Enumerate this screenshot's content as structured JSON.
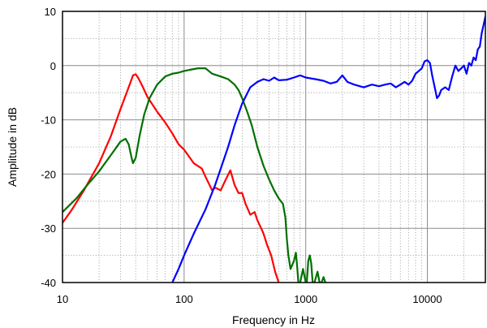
{
  "chart_data": {
    "type": "line",
    "xlabel": "Frequency in Hz",
    "ylabel": "Amplitude in dB",
    "x_scale": "log",
    "xlim": [
      10,
      30000
    ],
    "ylim": [
      -40,
      10
    ],
    "x_ticks": [
      {
        "value": 10,
        "label": "10"
      },
      {
        "value": 100,
        "label": "100"
      },
      {
        "value": 1000,
        "label": "1000"
      },
      {
        "value": 10000,
        "label": "10000"
      }
    ],
    "y_ticks": [
      {
        "value": 10,
        "label": "10"
      },
      {
        "value": 0,
        "label": "0"
      },
      {
        "value": -10,
        "label": "-10"
      },
      {
        "value": -20,
        "label": "-20"
      },
      {
        "value": -30,
        "label": "-30"
      },
      {
        "value": -40,
        "label": "-40"
      }
    ],
    "grid": true,
    "series": [
      {
        "color": "#ff0000",
        "points": [
          [
            10,
            -29
          ],
          [
            12,
            -26.5
          ],
          [
            15,
            -23
          ],
          [
            20,
            -18
          ],
          [
            25,
            -13
          ],
          [
            30,
            -8
          ],
          [
            35,
            -4
          ],
          [
            38,
            -1.8
          ],
          [
            40,
            -1.6
          ],
          [
            42,
            -2.3
          ],
          [
            45,
            -3.6
          ],
          [
            50,
            -5.8
          ],
          [
            60,
            -8.5
          ],
          [
            70,
            -10.5
          ],
          [
            80,
            -12.5
          ],
          [
            90,
            -14.5
          ],
          [
            100,
            -15.5
          ],
          [
            120,
            -18
          ],
          [
            140,
            -19
          ],
          [
            150,
            -20.5
          ],
          [
            170,
            -23
          ],
          [
            180,
            -22.5
          ],
          [
            200,
            -23
          ],
          [
            220,
            -21
          ],
          [
            240,
            -19.3
          ],
          [
            260,
            -22
          ],
          [
            280,
            -23.5
          ],
          [
            300,
            -23.5
          ],
          [
            320,
            -25.5
          ],
          [
            350,
            -27.5
          ],
          [
            380,
            -27
          ],
          [
            400,
            -28.5
          ],
          [
            430,
            -30
          ],
          [
            450,
            -31
          ],
          [
            480,
            -33
          ],
          [
            520,
            -35
          ],
          [
            560,
            -38
          ],
          [
            600,
            -40
          ]
        ]
      },
      {
        "color": "#007000",
        "points": [
          [
            10,
            -27
          ],
          [
            13,
            -24.5
          ],
          [
            16,
            -22
          ],
          [
            20,
            -19.5
          ],
          [
            25,
            -16.5
          ],
          [
            30,
            -14
          ],
          [
            33,
            -13.5
          ],
          [
            35,
            -14.5
          ],
          [
            37,
            -17
          ],
          [
            38,
            -18
          ],
          [
            40,
            -17
          ],
          [
            43,
            -13
          ],
          [
            47,
            -9
          ],
          [
            52,
            -6
          ],
          [
            60,
            -3.5
          ],
          [
            70,
            -2
          ],
          [
            80,
            -1.5
          ],
          [
            90,
            -1.3
          ],
          [
            100,
            -1
          ],
          [
            110,
            -0.8
          ],
          [
            130,
            -0.5
          ],
          [
            150,
            -0.5
          ],
          [
            170,
            -1.5
          ],
          [
            200,
            -2
          ],
          [
            230,
            -2.5
          ],
          [
            260,
            -3.5
          ],
          [
            280,
            -4.5
          ],
          [
            300,
            -6
          ],
          [
            330,
            -8.5
          ],
          [
            360,
            -11
          ],
          [
            400,
            -15
          ],
          [
            450,
            -18.5
          ],
          [
            500,
            -21
          ],
          [
            550,
            -23
          ],
          [
            600,
            -24.5
          ],
          [
            650,
            -25.5
          ],
          [
            680,
            -28
          ],
          [
            700,
            -32
          ],
          [
            720,
            -35
          ],
          [
            750,
            -37.5
          ],
          [
            800,
            -36
          ],
          [
            830,
            -34.5
          ],
          [
            850,
            -37
          ],
          [
            870,
            -40
          ],
          [
            900,
            -40
          ],
          [
            950,
            -37.5
          ],
          [
            1000,
            -40
          ],
          [
            1020,
            -40
          ],
          [
            1050,
            -36
          ],
          [
            1080,
            -35
          ],
          [
            1110,
            -36.5
          ],
          [
            1140,
            -40
          ],
          [
            1180,
            -40
          ],
          [
            1250,
            -38
          ],
          [
            1300,
            -40
          ],
          [
            1350,
            -40
          ],
          [
            1400,
            -39
          ],
          [
            1450,
            -40
          ]
        ]
      },
      {
        "color": "#0000ff",
        "points": [
          [
            80,
            -40
          ],
          [
            90,
            -37.5
          ],
          [
            100,
            -35
          ],
          [
            120,
            -31
          ],
          [
            150,
            -26.5
          ],
          [
            180,
            -22
          ],
          [
            200,
            -19
          ],
          [
            230,
            -15
          ],
          [
            260,
            -11
          ],
          [
            300,
            -7
          ],
          [
            350,
            -4
          ],
          [
            400,
            -3
          ],
          [
            450,
            -2.5
          ],
          [
            500,
            -2.8
          ],
          [
            550,
            -2.2
          ],
          [
            600,
            -2.7
          ],
          [
            700,
            -2.6
          ],
          [
            800,
            -2.2
          ],
          [
            900,
            -1.8
          ],
          [
            1000,
            -2.2
          ],
          [
            1200,
            -2.5
          ],
          [
            1400,
            -2.8
          ],
          [
            1600,
            -3.3
          ],
          [
            1800,
            -3
          ],
          [
            2000,
            -1.8
          ],
          [
            2200,
            -3
          ],
          [
            2500,
            -3.5
          ],
          [
            3000,
            -4
          ],
          [
            3500,
            -3.5
          ],
          [
            4000,
            -3.8
          ],
          [
            4500,
            -3.5
          ],
          [
            5000,
            -3.3
          ],
          [
            5500,
            -4
          ],
          [
            6000,
            -3.5
          ],
          [
            6500,
            -3
          ],
          [
            7000,
            -3.5
          ],
          [
            7500,
            -2.8
          ],
          [
            8000,
            -1.5
          ],
          [
            8500,
            -1
          ],
          [
            9000,
            -0.5
          ],
          [
            9500,
            0.8
          ],
          [
            10000,
            1
          ],
          [
            10500,
            0.5
          ],
          [
            11000,
            -2
          ],
          [
            11500,
            -4
          ],
          [
            12000,
            -6
          ],
          [
            12500,
            -5.5
          ],
          [
            13000,
            -4.5
          ],
          [
            14000,
            -4
          ],
          [
            15000,
            -4.5
          ],
          [
            16000,
            -2
          ],
          [
            17000,
            0
          ],
          [
            18000,
            -1
          ],
          [
            19000,
            -0.5
          ],
          [
            20000,
            0
          ],
          [
            21000,
            -1.5
          ],
          [
            22000,
            0.5
          ],
          [
            23000,
            0
          ],
          [
            24000,
            1.5
          ],
          [
            25000,
            1
          ],
          [
            26000,
            3
          ],
          [
            27000,
            3.5
          ],
          [
            28000,
            6
          ],
          [
            29000,
            7.5
          ],
          [
            30000,
            9
          ]
        ]
      }
    ]
  }
}
